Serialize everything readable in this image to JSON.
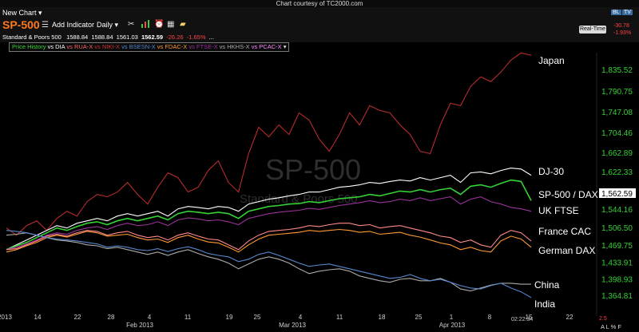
{
  "courtesy": "Chart courtesy of TC2000.com",
  "toolbar": {
    "new_chart": "New Chart",
    "symbol": "SP-500",
    "add_indicator": "Add Indicator",
    "interval": "Daily"
  },
  "quote": {
    "name": "Standard & Poors 500",
    "open": "1588.84",
    "high": "1588.84",
    "low": "1561.03",
    "last": "1562.59",
    "change": "-26.26",
    "pct": "-1.65%",
    "ellipsis": "..."
  },
  "overlay": {
    "items": [
      {
        "label": "Price History",
        "color": "#35d135"
      },
      {
        "label": "vs DIA",
        "color": "#ffffff"
      },
      {
        "label": "vs RUA-X",
        "color": "#ff6666"
      },
      {
        "label": "vs NIKI-X",
        "color": "#cc3333"
      },
      {
        "label": "vs BSESN-X",
        "color": "#5588cc"
      },
      {
        "label": "vs FDAC-X",
        "color": "#ff9933"
      },
      {
        "label": "vs FTSE-X",
        "color": "#993399"
      },
      {
        "label": "vs HKHS-X",
        "color": "#aaaaaa"
      },
      {
        "label": "vs PCAC-X",
        "color": "#ff88ff"
      }
    ]
  },
  "realtime": {
    "label": "Real-Time",
    "change": "-30.78",
    "pct": "-1.93%"
  },
  "bl_label": "BL",
  "tv_label": "TV",
  "watermark": {
    "title": "SP-500",
    "subtitle": "Standard & Poors 500"
  },
  "footer": {
    "time": "02:22:34",
    "version": "2.5",
    "modes": "A L % F"
  },
  "chart_data": {
    "type": "line",
    "y_ticks": [
      1835.52,
      1790.75,
      1747.08,
      1704.46,
      1662.89,
      1622.33,
      1582.76,
      1544.16,
      1506.5,
      1469.75,
      1433.91,
      1398.93,
      1364.81
    ],
    "y_tick_labels": [
      "1,835.52",
      "1,790.75",
      "1,747.08",
      "1,704.46",
      "1,662.89",
      "1,622.33",
      "1,582.76",
      "1,544.16",
      "1,506.50",
      "1,469.75",
      "1,433.91",
      "1,398.93",
      "1,364.81"
    ],
    "last_price": "1,562.59",
    "x_tick_labels": [
      "2013",
      "14",
      "22",
      "28",
      "4",
      "Feb 2013",
      "11",
      "19",
      "25",
      "4",
      "Mar 2013",
      "11",
      "18",
      "25",
      "1",
      "Apr 2013",
      "8",
      "15",
      "22"
    ],
    "grid": false,
    "annotations": [
      "Japan",
      "DJ-30",
      "SP-500 / DAX",
      "UK FTSE",
      "France CAC",
      "German DAX",
      "China",
      "India"
    ],
    "series": [
      {
        "name": "Japan",
        "color": "#b82c2c",
        "values": [
          1505,
          1490,
          1510,
          1520,
          1500,
          1525,
          1540,
          1530,
          1560,
          1575,
          1570,
          1580,
          1600,
          1575,
          1555,
          1590,
          1620,
          1610,
          1580,
          1590,
          1625,
          1645,
          1600,
          1580,
          1660,
          1715,
          1695,
          1720,
          1700,
          1745,
          1730,
          1690,
          1665,
          1700,
          1745,
          1720,
          1760,
          1750,
          1745,
          1720,
          1700,
          1665,
          1660,
          1720,
          1765,
          1760,
          1800,
          1820,
          1810,
          1830,
          1855,
          1870,
          1865
        ]
      },
      {
        "name": "DJ-30",
        "color": "#ffffff",
        "values": [
          1460,
          1470,
          1480,
          1490,
          1500,
          1510,
          1505,
          1515,
          1520,
          1525,
          1520,
          1530,
          1535,
          1530,
          1535,
          1540,
          1530,
          1545,
          1550,
          1548,
          1545,
          1550,
          1548,
          1540,
          1555,
          1560,
          1565,
          1568,
          1572,
          1575,
          1580,
          1580,
          1585,
          1590,
          1592,
          1595,
          1600,
          1598,
          1602,
          1605,
          1603,
          1610,
          1605,
          1610,
          1615,
          1600,
          1620,
          1622,
          1618,
          1625,
          1630,
          1628,
          1615
        ]
      },
      {
        "name": "SP-500 / DAX",
        "color": "#35d135",
        "values": [
          1460,
          1468,
          1475,
          1485,
          1495,
          1505,
          1500,
          1508,
          1515,
          1518,
          1512,
          1520,
          1525,
          1520,
          1525,
          1530,
          1522,
          1535,
          1540,
          1538,
          1535,
          1538,
          1535,
          1525,
          1540,
          1545,
          1550,
          1552,
          1555,
          1556,
          1560,
          1558,
          1562,
          1566,
          1568,
          1570,
          1575,
          1572,
          1577,
          1582,
          1580,
          1585,
          1580,
          1585,
          1588,
          1575,
          1592,
          1595,
          1590,
          1598,
          1605,
          1602,
          1562
        ]
      },
      {
        "name": "UK FTSE",
        "color": "#993399",
        "values": [
          1460,
          1465,
          1472,
          1480,
          1490,
          1495,
          1492,
          1500,
          1505,
          1508,
          1502,
          1510,
          1515,
          1510,
          1512,
          1518,
          1510,
          1522,
          1526,
          1524,
          1520,
          1522,
          1518,
          1512,
          1525,
          1530,
          1535,
          1538,
          1540,
          1542,
          1546,
          1544,
          1548,
          1552,
          1555,
          1558,
          1562,
          1558,
          1560,
          1565,
          1562,
          1568,
          1562,
          1566,
          1570,
          1555,
          1565,
          1570,
          1560,
          1555,
          1548,
          1545,
          1540
        ]
      },
      {
        "name": "France CAC",
        "color": "#ff8888",
        "values": [
          1460,
          1462,
          1470,
          1478,
          1488,
          1492,
          1488,
          1495,
          1500,
          1498,
          1490,
          1495,
          1498,
          1490,
          1485,
          1488,
          1480,
          1490,
          1495,
          1488,
          1482,
          1480,
          1470,
          1460,
          1478,
          1490,
          1498,
          1500,
          1502,
          1505,
          1510,
          1508,
          1512,
          1515,
          1515,
          1510,
          1512,
          1505,
          1508,
          1510,
          1505,
          1500,
          1495,
          1488,
          1485,
          1475,
          1480,
          1470,
          1465,
          1490,
          1500,
          1495,
          1478
        ]
      },
      {
        "name": "German DAX",
        "color": "#ff9933",
        "values": [
          1455,
          1460,
          1468,
          1475,
          1485,
          1490,
          1486,
          1492,
          1498,
          1495,
          1488,
          1490,
          1492,
          1485,
          1480,
          1482,
          1475,
          1485,
          1490,
          1482,
          1476,
          1474,
          1465,
          1455,
          1470,
          1482,
          1490,
          1492,
          1494,
          1496,
          1500,
          1498,
          1500,
          1502,
          1500,
          1496,
          1498,
          1492,
          1494,
          1496,
          1490,
          1486,
          1480,
          1474,
          1470,
          1460,
          1465,
          1458,
          1455,
          1478,
          1488,
          1482,
          1465
        ]
      },
      {
        "name": "China",
        "color": "#aaaaaa",
        "values": [
          1490,
          1492,
          1495,
          1490,
          1485,
          1480,
          1478,
          1475,
          1470,
          1468,
          1462,
          1465,
          1460,
          1455,
          1450,
          1455,
          1448,
          1455,
          1460,
          1452,
          1445,
          1440,
          1432,
          1420,
          1430,
          1440,
          1445,
          1440,
          1432,
          1420,
          1410,
          1415,
          1418,
          1420,
          1415,
          1405,
          1400,
          1395,
          1392,
          1398,
          1400,
          1395,
          1395,
          1400,
          1392,
          1378,
          1374,
          1380,
          1386,
          1390,
          1390,
          1388,
          1388
        ]
      },
      {
        "name": "India",
        "color": "#5588cc",
        "values": [
          1500,
          1498,
          1495,
          1490,
          1485,
          1482,
          1480,
          1478,
          1475,
          1472,
          1465,
          1468,
          1465,
          1460,
          1458,
          1462,
          1456,
          1462,
          1466,
          1460,
          1452,
          1448,
          1445,
          1435,
          1440,
          1450,
          1455,
          1448,
          1440,
          1432,
          1425,
          1428,
          1430,
          1425,
          1420,
          1415,
          1410,
          1405,
          1400,
          1402,
          1408,
          1400,
          1395,
          1398,
          1392,
          1385,
          1380,
          1378,
          1385,
          1390,
          1380,
          1372,
          1360
        ]
      }
    ]
  }
}
